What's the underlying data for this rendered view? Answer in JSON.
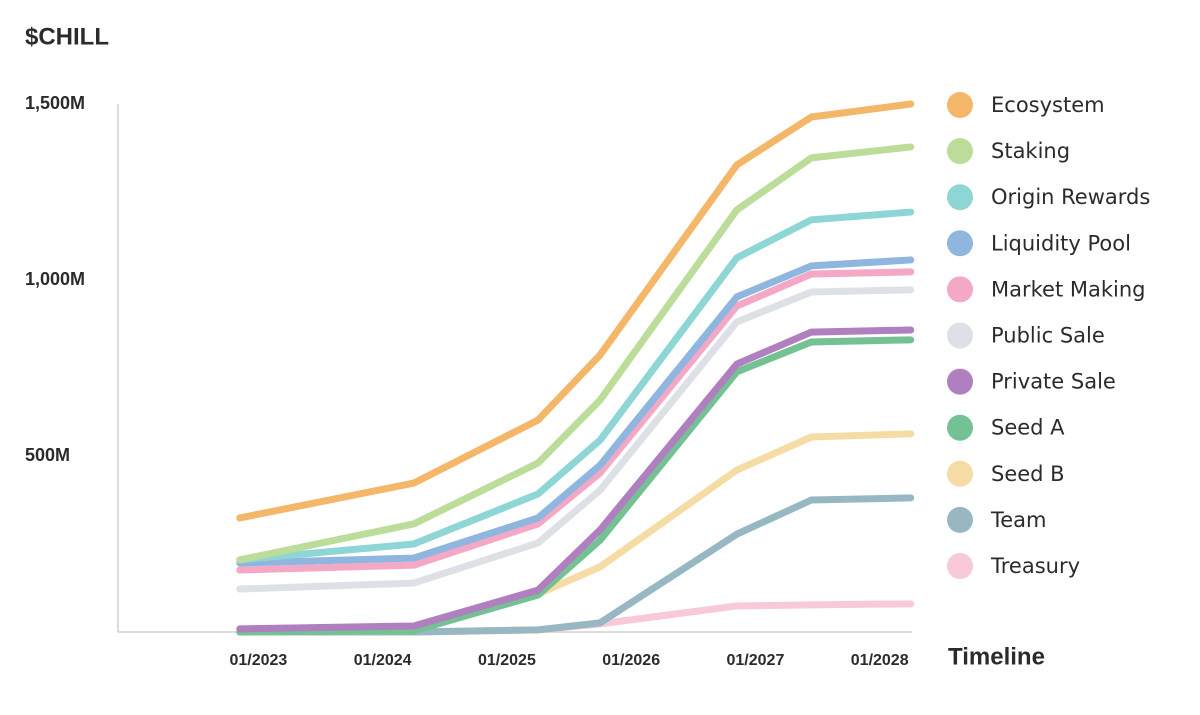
{
  "chart_data": {
    "type": "line",
    "title": "$CHILL",
    "x_label": "Timeline",
    "x": [
      2022.85,
      2024.25,
      2025.25,
      2025.75,
      2026.85,
      2027.45,
      2028.25
    ],
    "xlim": [
      2021.87,
      2028.26
    ],
    "xticks": [
      {
        "value": 2023,
        "label": "01/2023"
      },
      {
        "value": 2024,
        "label": "01/2024"
      },
      {
        "value": 2025,
        "label": "01/2025"
      },
      {
        "value": 2026,
        "label": "01/2026"
      },
      {
        "value": 2027,
        "label": "01/2027"
      },
      {
        "value": 2028,
        "label": "01/2028"
      }
    ],
    "ylim": [
      0,
      1500
    ],
    "yticks": [
      {
        "value": 500,
        "label": "500M"
      },
      {
        "value": 1000,
        "label": "1,000M"
      },
      {
        "value": 1500,
        "label": "1,500M"
      }
    ],
    "grid": false,
    "legend": "right",
    "series": [
      {
        "name": "Ecosystem",
        "color": "#f4b76a",
        "values": [
          324,
          423,
          602,
          787,
          1327,
          1463,
          1500
        ]
      },
      {
        "name": "Staking",
        "color": "#bcdc9a",
        "values": [
          205,
          307,
          480,
          659,
          1199,
          1347,
          1378
        ]
      },
      {
        "name": "Origin Rewards",
        "color": "#8ed5d6",
        "values": [
          205,
          250,
          392,
          545,
          1063,
          1171,
          1193
        ]
      },
      {
        "name": "Liquidity Pool",
        "color": "#8fb6de",
        "values": [
          196,
          210,
          324,
          474,
          952,
          1040,
          1057
        ]
      },
      {
        "name": "Market Making",
        "color": "#f5a7c6",
        "values": [
          176,
          190,
          307,
          452,
          926,
          1017,
          1023
        ]
      },
      {
        "name": "Public Sale",
        "color": "#dde1e6",
        "values": [
          122,
          139,
          253,
          403,
          881,
          966,
          972
        ]
      },
      {
        "name": "Private Sale",
        "color": "#b07fc0",
        "values": [
          9,
          17,
          119,
          290,
          761,
          852,
          858
        ]
      },
      {
        "name": "Seed A",
        "color": "#74c293",
        "values": [
          0,
          3,
          105,
          261,
          739,
          824,
          830
        ]
      },
      {
        "name": "Seed B",
        "color": "#f5dca5",
        "values": [
          0,
          3,
          108,
          185,
          460,
          554,
          563
        ]
      },
      {
        "name": "Team",
        "color": "#97b8c2",
        "values": [
          0,
          0,
          6,
          26,
          278,
          375,
          381
        ]
      },
      {
        "name": "Treasury",
        "color": "#f8c9d9",
        "values": [
          0,
          0,
          6,
          23,
          74,
          77,
          80
        ]
      }
    ]
  }
}
